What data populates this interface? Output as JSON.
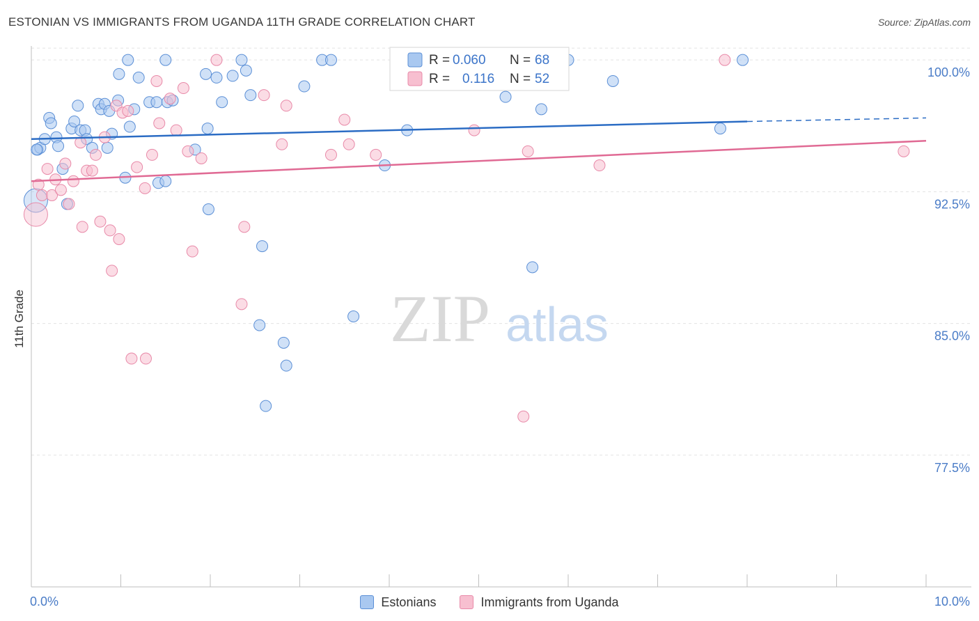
{
  "title": "ESTONIAN VS IMMIGRANTS FROM UGANDA 11TH GRADE CORRELATION CHART",
  "source": "Source: ZipAtlas.com",
  "watermark": {
    "zip": "ZIP",
    "atlas": "atlas"
  },
  "colors": {
    "blue_fill": "#a9c8f0",
    "blue_stroke": "#5b8fd6",
    "blue_line": "#2b6cc4",
    "pink_fill": "#f7bfd0",
    "pink_stroke": "#e889a8",
    "pink_line": "#e06a94",
    "axis_text": "#4a7cc7",
    "grid": "#e3e3e3"
  },
  "legend_top": {
    "rows": [
      {
        "r_label": "R =",
        "r_value": "0.060",
        "n_label": "N =",
        "n_value": "68"
      },
      {
        "r_label": "R =",
        "r_value": "0.116",
        "n_label": "N =",
        "n_value": "52"
      }
    ]
  },
  "legend_bottom": {
    "series1": "Estonians",
    "series2": "Immigrants from Uganda"
  },
  "chart_data": {
    "type": "scatter",
    "ylabel": "11th Grade",
    "xlim": [
      0,
      10
    ],
    "ylim": [
      70.0,
      100.8
    ],
    "x_ticks": [
      "0.0%",
      "10.0%"
    ],
    "y_ticks": [
      {
        "value": 100.0,
        "label": "100.0%"
      },
      {
        "value": 92.5,
        "label": "92.5%"
      },
      {
        "value": 85.0,
        "label": "85.0%"
      },
      {
        "value": 77.5,
        "label": "77.5%"
      }
    ],
    "series": [
      {
        "name": "Estonians",
        "r": 0.06,
        "n": 68,
        "trend": {
          "x0": 0.0,
          "y0": 95.5,
          "x1": 8.0,
          "y1": 96.5,
          "dash_to_x": 10.0,
          "dash_to_y": 96.7
        },
        "points": [
          [
            0.07,
            94.9
          ],
          [
            0.1,
            95.0
          ],
          [
            0.15,
            95.5
          ],
          [
            0.2,
            96.7
          ],
          [
            0.22,
            96.4
          ],
          [
            0.28,
            95.6
          ],
          [
            0.3,
            95.1
          ],
          [
            0.35,
            93.8
          ],
          [
            0.4,
            91.8
          ],
          [
            0.45,
            96.1
          ],
          [
            0.48,
            96.5
          ],
          [
            0.52,
            97.4
          ],
          [
            0.55,
            96.0
          ],
          [
            0.6,
            96.0
          ],
          [
            0.62,
            95.5
          ],
          [
            0.68,
            95.0
          ],
          [
            0.75,
            97.5
          ],
          [
            0.78,
            97.2
          ],
          [
            0.82,
            97.5
          ],
          [
            0.85,
            95.0
          ],
          [
            0.87,
            97.1
          ],
          [
            0.9,
            95.8
          ],
          [
            0.97,
            97.7
          ],
          [
            0.98,
            99.2
          ],
          [
            1.05,
            93.3
          ],
          [
            1.08,
            100.0
          ],
          [
            1.1,
            96.2
          ],
          [
            1.15,
            97.2
          ],
          [
            1.2,
            99.0
          ],
          [
            1.32,
            97.6
          ],
          [
            1.4,
            97.6
          ],
          [
            1.42,
            93.0
          ],
          [
            1.5,
            100.0
          ],
          [
            1.5,
            93.1
          ],
          [
            1.52,
            97.6
          ],
          [
            1.58,
            97.7
          ],
          [
            1.83,
            94.9
          ],
          [
            1.95,
            99.2
          ],
          [
            1.97,
            96.1
          ],
          [
            1.98,
            91.5
          ],
          [
            2.07,
            99.0
          ],
          [
            2.13,
            97.6
          ],
          [
            2.25,
            99.1
          ],
          [
            2.35,
            100.0
          ],
          [
            2.4,
            99.4
          ],
          [
            2.45,
            98.0
          ],
          [
            2.58,
            89.4
          ],
          [
            2.55,
            84.9
          ],
          [
            2.62,
            80.3
          ],
          [
            2.82,
            83.9
          ],
          [
            2.85,
            82.6
          ],
          [
            3.05,
            98.5
          ],
          [
            3.25,
            100.0
          ],
          [
            3.35,
            100.0
          ],
          [
            3.6,
            85.4
          ],
          [
            3.95,
            94.0
          ],
          [
            4.15,
            99.4
          ],
          [
            4.2,
            96.0
          ],
          [
            4.8,
            100.0
          ],
          [
            5.3,
            97.9
          ],
          [
            5.6,
            88.2
          ],
          [
            5.7,
            97.2
          ],
          [
            6.0,
            100.0
          ],
          [
            6.5,
            98.8
          ],
          [
            7.7,
            96.1
          ],
          [
            7.95,
            100.0
          ],
          [
            0.05,
            92.0
          ],
          [
            0.06,
            94.9
          ]
        ]
      },
      {
        "name": "Immigrants from Uganda",
        "r": 0.116,
        "n": 52,
        "trend": {
          "x0": 0.0,
          "y0": 93.1,
          "x1": 10.0,
          "y1": 95.4
        },
        "points": [
          [
            0.05,
            91.2
          ],
          [
            0.08,
            92.9
          ],
          [
            0.12,
            92.3
          ],
          [
            0.18,
            93.8
          ],
          [
            0.23,
            92.3
          ],
          [
            0.27,
            93.2
          ],
          [
            0.33,
            92.6
          ],
          [
            0.38,
            94.1
          ],
          [
            0.42,
            91.8
          ],
          [
            0.47,
            93.1
          ],
          [
            0.55,
            95.3
          ],
          [
            0.57,
            90.5
          ],
          [
            0.62,
            93.7
          ],
          [
            0.68,
            93.7
          ],
          [
            0.72,
            94.6
          ],
          [
            0.77,
            90.8
          ],
          [
            0.82,
            95.6
          ],
          [
            0.88,
            90.3
          ],
          [
            0.9,
            88.0
          ],
          [
            0.95,
            97.4
          ],
          [
            0.98,
            89.8
          ],
          [
            1.02,
            97.0
          ],
          [
            1.08,
            97.1
          ],
          [
            1.12,
            83.0
          ],
          [
            1.18,
            93.9
          ],
          [
            1.27,
            92.7
          ],
          [
            1.28,
            83.0
          ],
          [
            1.35,
            94.6
          ],
          [
            1.4,
            98.8
          ],
          [
            1.43,
            96.4
          ],
          [
            1.55,
            97.8
          ],
          [
            1.62,
            96.0
          ],
          [
            1.7,
            98.4
          ],
          [
            1.75,
            94.8
          ],
          [
            1.8,
            89.1
          ],
          [
            1.9,
            94.4
          ],
          [
            2.07,
            100.0
          ],
          [
            2.35,
            86.1
          ],
          [
            2.38,
            90.5
          ],
          [
            2.6,
            98.0
          ],
          [
            2.8,
            95.2
          ],
          [
            2.85,
            97.4
          ],
          [
            3.35,
            94.6
          ],
          [
            3.5,
            96.6
          ],
          [
            3.55,
            95.2
          ],
          [
            3.85,
            94.6
          ],
          [
            4.95,
            96.0
          ],
          [
            5.5,
            79.7
          ],
          [
            5.55,
            94.8
          ],
          [
            6.35,
            94.0
          ],
          [
            7.75,
            100.0
          ],
          [
            9.75,
            94.8
          ]
        ]
      }
    ]
  }
}
